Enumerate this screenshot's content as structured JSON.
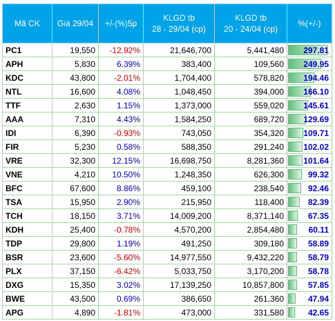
{
  "table": {
    "header": [
      [
        "Mã CK"
      ],
      [
        "Giá 29/04"
      ],
      [
        "+/-(%)5p"
      ],
      [
        "KLGD tb",
        "28 - 29/04 (cp)"
      ],
      [
        "KLGD tb",
        "20 - 24/04 (cp)"
      ],
      [
        "%(+/-)"
      ]
    ],
    "rows": [
      [
        "PC1",
        "19,550",
        "-12.92%",
        "21,646,700",
        "5,441,480",
        "297.81"
      ],
      [
        "APH",
        "5,830",
        "6.39%",
        "383,400",
        "109,560",
        "249.95"
      ],
      [
        "KDC",
        "43,800",
        "-2.01%",
        "1,704,400",
        "578,820",
        "194.46"
      ],
      [
        "NTL",
        "16,600",
        "4.08%",
        "1,048,450",
        "394,000",
        "166.10"
      ],
      [
        "TTF",
        "2,630",
        "1.15%",
        "1,373,000",
        "559,020",
        "145.61"
      ],
      [
        "AAA",
        "7,310",
        "4.43%",
        "1,584,250",
        "689,720",
        "129.69"
      ],
      [
        "IDI",
        "6,390",
        "-0.93%",
        "743,050",
        "354,320",
        "109.71"
      ],
      [
        "FIR",
        "5,230",
        "0.58%",
        "588,350",
        "291,240",
        "102.02"
      ],
      [
        "VRE",
        "32,300",
        "12.15%",
        "16,698,750",
        "8,281,360",
        "101.64"
      ],
      [
        "VNE",
        "4,210",
        "10.50%",
        "1,248,350",
        "626,300",
        "99.32"
      ],
      [
        "BFC",
        "67,600",
        "8.86%",
        "459,100",
        "238,540",
        "92.46"
      ],
      [
        "TSA",
        "15,950",
        "2.90%",
        "215,950",
        "118,400",
        "82.39"
      ],
      [
        "TCH",
        "18,150",
        "3.71%",
        "14,009,200",
        "8,371,140",
        "67.35"
      ],
      [
        "KDH",
        "25,400",
        "-0.78%",
        "4,570,200",
        "2,854,480",
        "60.11"
      ],
      [
        "TDP",
        "29,800",
        "1.19%",
        "491,250",
        "309,180",
        "58.89"
      ],
      [
        "BSR",
        "23,600",
        "-5.60%",
        "14,977,550",
        "9,432,220",
        "58.79"
      ],
      [
        "PLX",
        "37,150",
        "-6.42%",
        "5,033,750",
        "3,170,200",
        "58.78"
      ],
      [
        "DXG",
        "15,350",
        "3.02%",
        "17,139,250",
        "10,857,800",
        "57.85"
      ],
      [
        "BWE",
        "43,500",
        "0.69%",
        "386,650",
        "261,360",
        "47.94"
      ],
      [
        "APG",
        "4,890",
        "-1.81%",
        "473,000",
        "331,580",
        "42.65"
      ]
    ]
  }
}
